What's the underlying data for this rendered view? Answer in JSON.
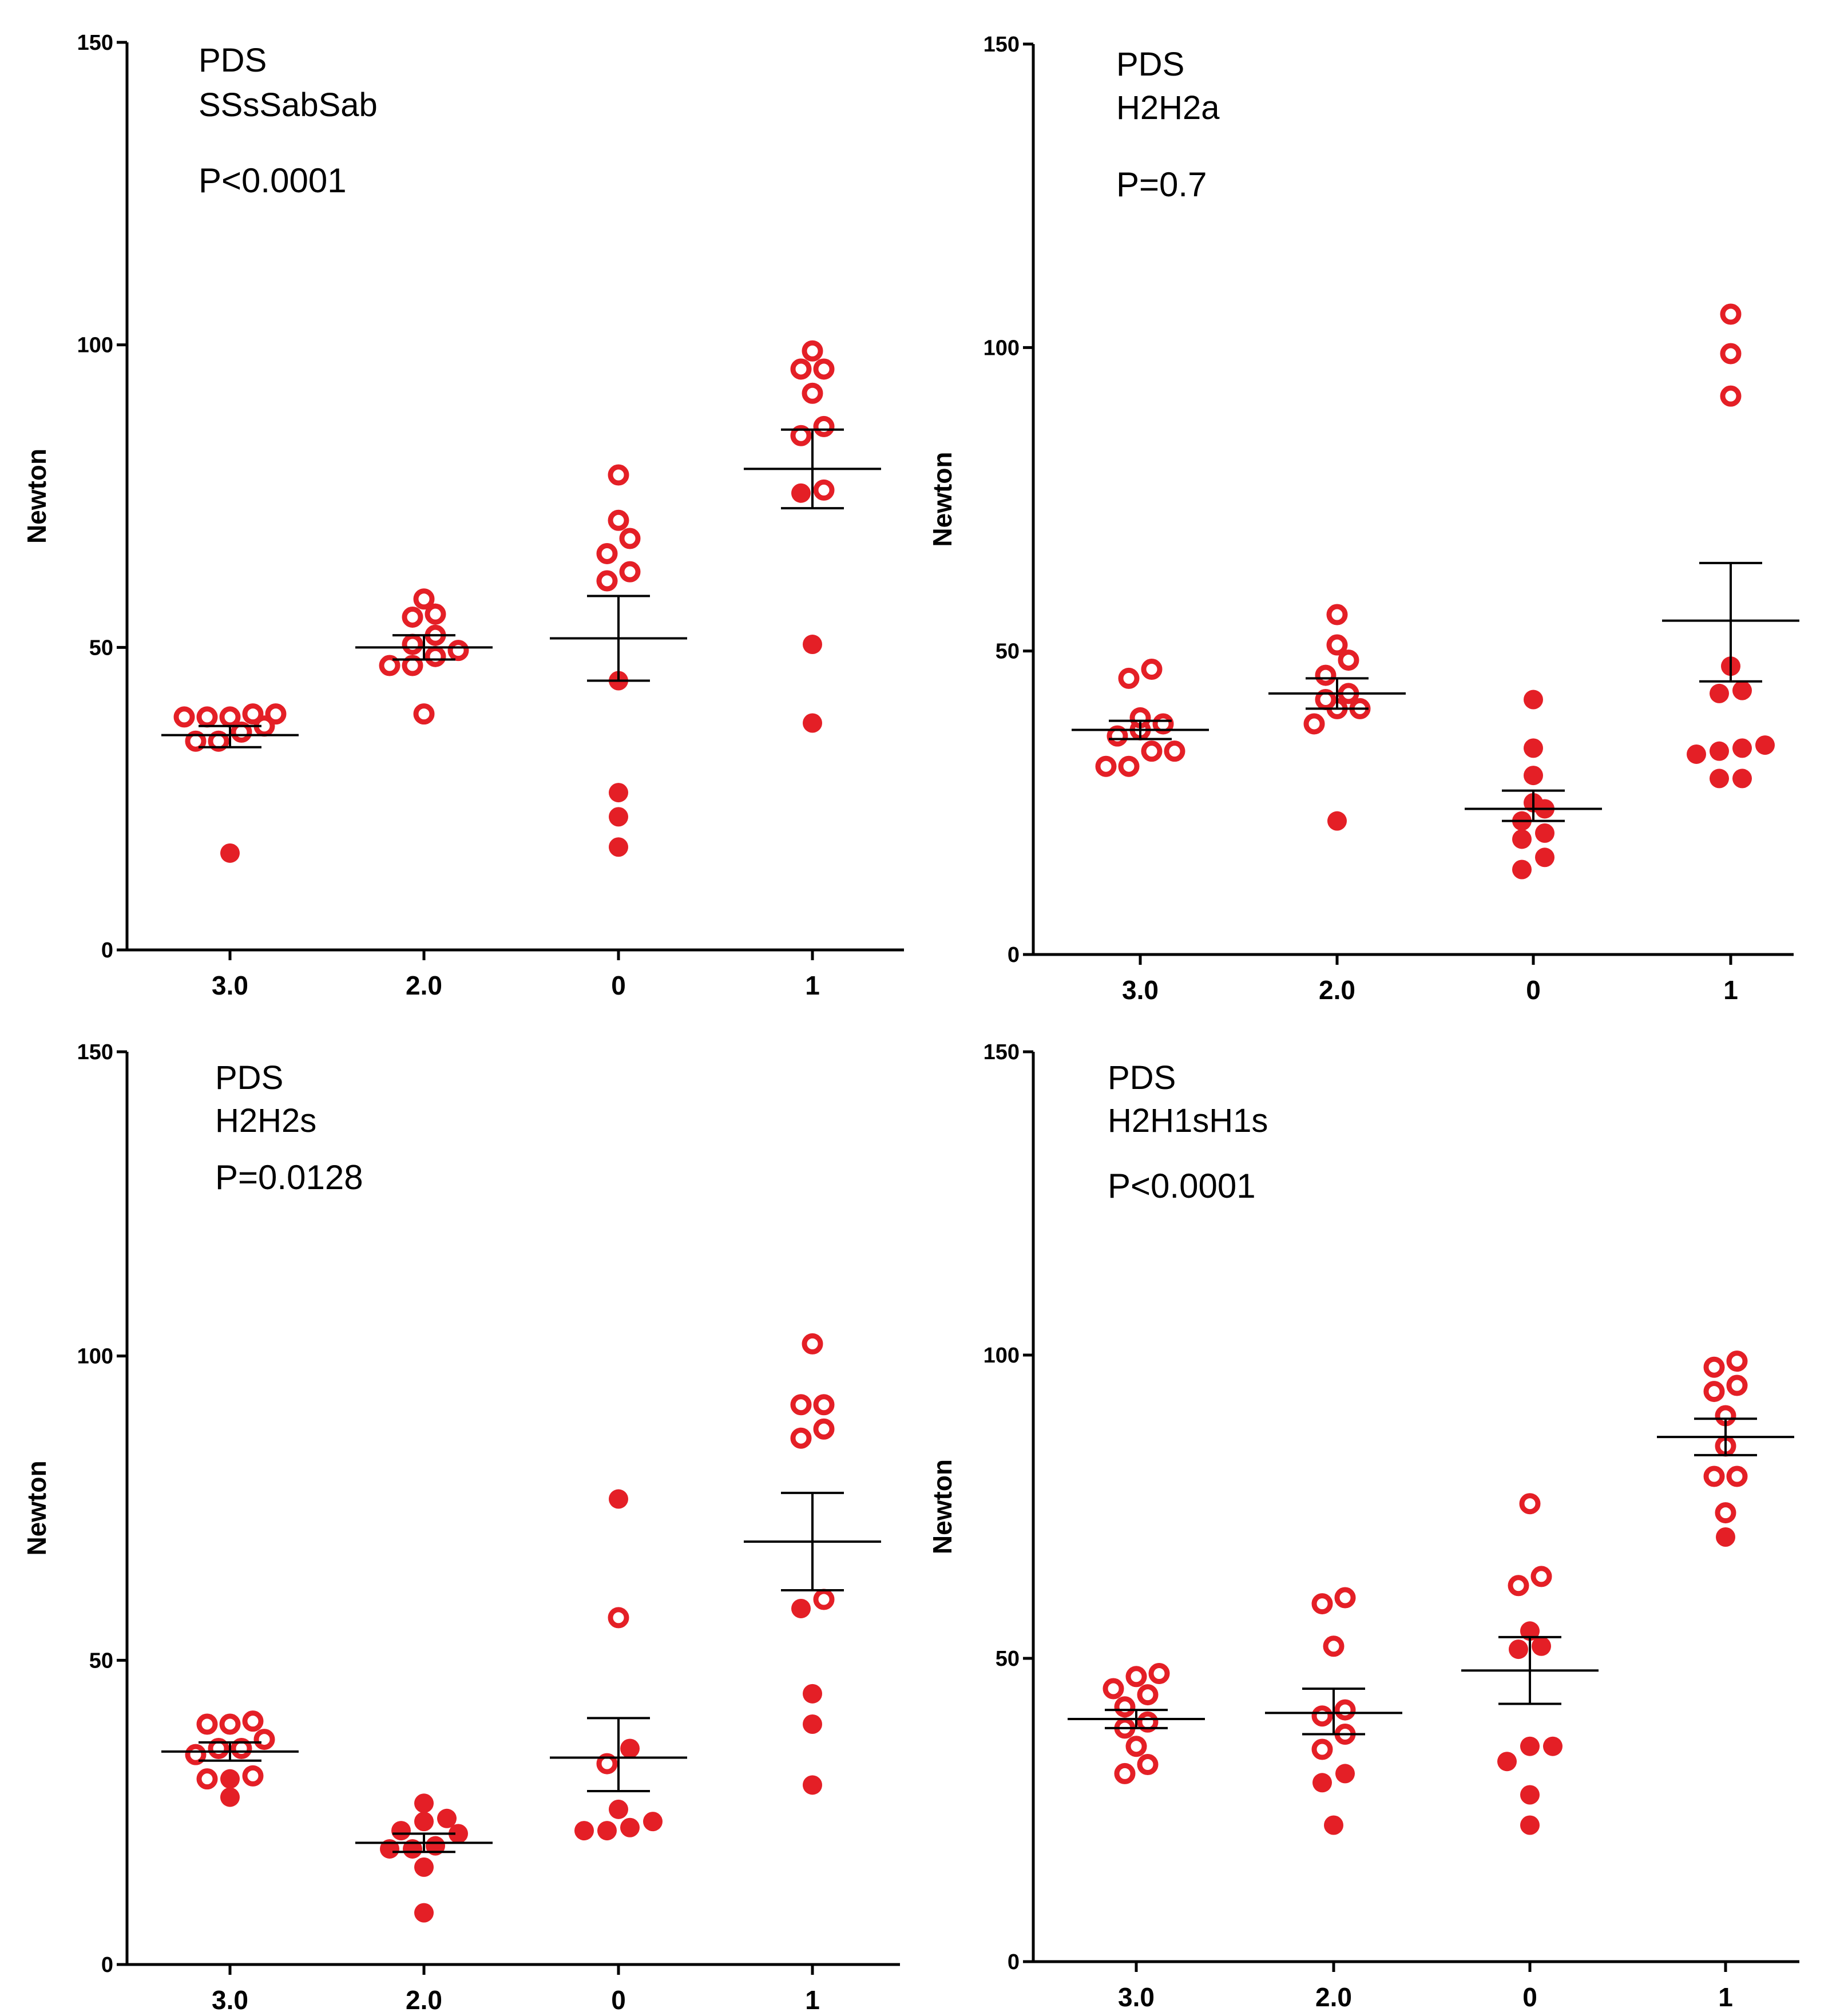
{
  "colors": {
    "marker": "#e41f26",
    "axis": "#000000",
    "p_highlight": "#e41f26"
  },
  "chart_data": [
    {
      "type": "scatter",
      "title_lines": [
        "PDS",
        "SSsSabSab"
      ],
      "p_value": "P<0.0001",
      "p_color": "#000000",
      "ylabel": "Newton",
      "categories": [
        "3.0",
        "2.0",
        "0",
        "1"
      ],
      "ylim": [
        0,
        150
      ],
      "yticks": [
        0,
        50,
        100,
        150
      ],
      "groups": [
        {
          "category": "3.0",
          "mean": 35.5,
          "sem_low": 33.5,
          "sem_high": 37.0,
          "open_points": [
            39.0,
            38.5,
            38.5,
            38.5,
            39.0,
            37.0,
            34.5,
            34.5,
            36.0
          ],
          "filled_points": [
            16.0
          ]
        },
        {
          "category": "2.0",
          "mean": 50.0,
          "sem_low": 48.0,
          "sem_high": 52.0,
          "open_points": [
            55.5,
            55.0,
            58.0,
            49.5,
            50.5,
            52.0,
            47.0,
            47.0,
            48.5,
            39.0
          ],
          "filled_points": []
        },
        {
          "category": "0",
          "mean": 51.5,
          "sem_low": 44.5,
          "sem_high": 58.5,
          "open_points": [
            78.5,
            71.0,
            68.0,
            65.5,
            62.5,
            61.0
          ],
          "filled_points": [
            44.5,
            26.0,
            22.0,
            17.0
          ]
        },
        {
          "category": "1",
          "mean": 79.5,
          "sem_low": 73.0,
          "sem_high": 86.0,
          "open_points": [
            99.0,
            96.0,
            96.0,
            92.0,
            86.5,
            85.0,
            76.0
          ],
          "filled_points": [
            75.5,
            50.5,
            37.5
          ]
        }
      ]
    },
    {
      "type": "scatter",
      "title_lines": [
        "PDS",
        "H2H2a"
      ],
      "p_value": "P=0.7",
      "p_color": "#e41f26",
      "ylabel": "Newton",
      "categories": [
        "3.0",
        "2.0",
        "0",
        "1"
      ],
      "ylim": [
        0,
        150
      ],
      "yticks": [
        0,
        50,
        100,
        150
      ],
      "groups": [
        {
          "category": "3.0",
          "mean": 37.0,
          "sem_low": 35.5,
          "sem_high": 38.5,
          "open_points": [
            47.0,
            45.5,
            39.0,
            38.0,
            37.0,
            36.0,
            33.5,
            33.5,
            31.0,
            31.0
          ],
          "filled_points": []
        },
        {
          "category": "2.0",
          "mean": 43.0,
          "sem_low": 40.5,
          "sem_high": 45.5,
          "open_points": [
            56.0,
            51.0,
            48.5,
            46.0,
            43.0,
            42.0,
            40.5,
            40.5,
            38.0
          ],
          "filled_points": [
            22.0
          ]
        },
        {
          "category": "0",
          "mean": 24.0,
          "sem_low": 22.0,
          "sem_high": 27.0,
          "open_points": [],
          "filled_points": [
            42.0,
            34.0,
            29.5,
            25.0,
            24.0,
            22.0,
            20.0,
            19.0,
            16.0,
            14.0
          ]
        },
        {
          "category": "1",
          "mean": 55.0,
          "sem_low": 45.0,
          "sem_high": 64.5,
          "open_points": [
            105.5,
            99.0,
            92.0
          ],
          "filled_points": [
            47.5,
            43.5,
            43.0,
            34.5,
            34.0,
            33.5,
            33.0,
            29.0,
            29.0
          ]
        }
      ]
    },
    {
      "type": "scatter",
      "title_lines": [
        "PDS",
        "H2H2s"
      ],
      "p_value": "P=0.0128",
      "p_color": "#000000",
      "ylabel": "Newton",
      "categories": [
        "3.0",
        "2.0",
        "0",
        "1"
      ],
      "ylim": [
        0,
        150
      ],
      "yticks": [
        0,
        50,
        100,
        150
      ],
      "groups": [
        {
          "category": "3.0",
          "mean": 35.0,
          "sem_low": 33.5,
          "sem_high": 36.5,
          "open_points": [
            40.0,
            39.5,
            39.5,
            37.0,
            35.5,
            35.5,
            34.5,
            31.0,
            30.5
          ],
          "filled_points": [
            30.5,
            27.5
          ]
        },
        {
          "category": "2.0",
          "mean": 20.0,
          "sem_low": 18.5,
          "sem_high": 21.5,
          "open_points": [],
          "filled_points": [
            26.5,
            24.0,
            23.5,
            22.0,
            21.5,
            19.5,
            19.0,
            19.0,
            16.0,
            8.5
          ]
        },
        {
          "category": "0",
          "mean": 34.0,
          "sem_low": 28.5,
          "sem_high": 40.5,
          "open_points": [
            57.0,
            33.0
          ],
          "filled_points": [
            76.5,
            35.5,
            25.5,
            23.5,
            22.5,
            22.0,
            22.0
          ]
        },
        {
          "category": "1",
          "mean": 69.5,
          "sem_low": 61.5,
          "sem_high": 77.5,
          "open_points": [
            102.0,
            92.0,
            92.0,
            88.0,
            86.5,
            60.0
          ],
          "filled_points": [
            58.5,
            44.5,
            39.5,
            29.5
          ]
        }
      ]
    },
    {
      "type": "scatter",
      "title_lines": [
        "PDS",
        "H2H1sH1s"
      ],
      "p_value": "P<0.0001",
      "p_color": "#000000",
      "ylabel": "Newton",
      "categories": [
        "3.0",
        "2.0",
        "0",
        "1"
      ],
      "ylim": [
        0,
        150
      ],
      "yticks": [
        0,
        50,
        100,
        150
      ],
      "groups": [
        {
          "category": "3.0",
          "mean": 40.0,
          "sem_low": 38.5,
          "sem_high": 41.5,
          "open_points": [
            47.5,
            47.0,
            45.0,
            44.0,
            42.0,
            39.5,
            38.5,
            35.5,
            32.5,
            31.0
          ],
          "filled_points": []
        },
        {
          "category": "2.0",
          "mean": 41.0,
          "sem_low": 37.5,
          "sem_high": 45.0,
          "open_points": [
            60.0,
            59.0,
            52.0,
            41.5,
            40.5,
            37.5,
            35.0
          ],
          "filled_points": [
            31.0,
            29.5,
            22.5
          ]
        },
        {
          "category": "0",
          "mean": 48.0,
          "sem_low": 42.5,
          "sem_high": 53.5,
          "open_points": [
            75.5,
            63.5,
            62.0
          ],
          "filled_points": [
            54.5,
            52.0,
            51.5,
            35.5,
            35.5,
            33.0,
            27.5,
            22.5
          ]
        },
        {
          "category": "1",
          "mean": 86.5,
          "sem_low": 83.5,
          "sem_high": 89.5,
          "open_points": [
            98.0,
            99.0,
            95.0,
            94.0,
            90.0,
            85.0,
            80.0,
            80.0,
            74.0
          ],
          "filled_points": [
            70.0
          ]
        }
      ]
    }
  ]
}
